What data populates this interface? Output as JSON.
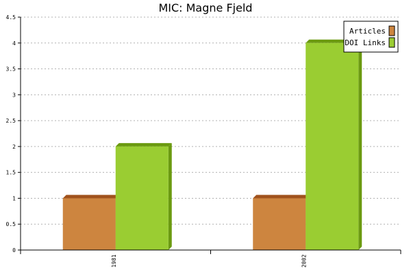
{
  "chart_data": {
    "type": "bar",
    "title": "MIC: Magne Fjeld",
    "categories": [
      "1981",
      "2002"
    ],
    "series": [
      {
        "name": "Articles",
        "values": [
          1,
          1
        ],
        "color": "#cd853f",
        "side_color": "#a0521d"
      },
      {
        "name": "DOI Links",
        "values": [
          2,
          4
        ],
        "color": "#9acd32",
        "side_color": "#6b9a10"
      }
    ],
    "xlabel": "",
    "ylabel": "",
    "ylim": [
      0,
      4.5
    ],
    "yticks": [
      "0",
      "0.5",
      "1",
      "1.5",
      "2",
      "2.5",
      "3",
      "3.5",
      "4",
      "4.5"
    ],
    "grid": true,
    "legend_position": "top-right"
  }
}
